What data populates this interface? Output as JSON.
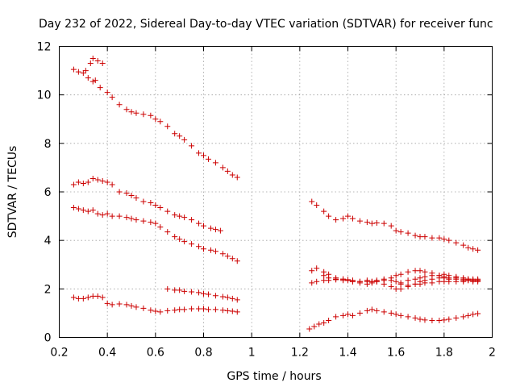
{
  "chart_data": {
    "type": "scatter",
    "title": "Day 232 of 2022, Sidereal Day-to-day VTEC variation (SDTVAR) for receiver func",
    "xlabel": "GPS time / hours",
    "ylabel": "SDTVAR / TECUs",
    "xlim": [
      0.2,
      2.0
    ],
    "ylim": [
      0,
      12
    ],
    "xticks": [
      0.2,
      0.4,
      0.6,
      0.8,
      1.0,
      1.2,
      1.4,
      1.6,
      1.8,
      2.0
    ],
    "xtick_labels": [
      "0.2",
      "0.4",
      "0.6",
      "0.8",
      "1",
      "1.2",
      "1.4",
      "1.6",
      "1.8",
      "2"
    ],
    "yticks": [
      0,
      2,
      4,
      6,
      8,
      10,
      12
    ],
    "ytick_labels": [
      "0",
      "2",
      "4",
      "6",
      "8",
      "10",
      "12"
    ],
    "grid": true,
    "marker": "+",
    "marker_color": "#cc0000",
    "series": [
      {
        "name": "s1",
        "points": [
          [
            0.26,
            11.05
          ],
          [
            0.28,
            10.95
          ],
          [
            0.3,
            10.9
          ],
          [
            0.32,
            10.7
          ],
          [
            0.34,
            10.55
          ],
          [
            0.35,
            10.6
          ],
          [
            0.37,
            10.3
          ],
          [
            0.4,
            10.1
          ],
          [
            0.42,
            9.9
          ],
          [
            0.45,
            9.6
          ],
          [
            0.48,
            9.4
          ],
          [
            0.5,
            9.3
          ],
          [
            0.52,
            9.25
          ],
          [
            0.55,
            9.2
          ],
          [
            0.58,
            9.15
          ],
          [
            0.6,
            9.0
          ],
          [
            0.62,
            8.9
          ],
          [
            0.65,
            8.7
          ],
          [
            0.68,
            8.4
          ],
          [
            0.7,
            8.3
          ],
          [
            0.72,
            8.15
          ],
          [
            0.75,
            7.9
          ],
          [
            0.78,
            7.6
          ],
          [
            0.8,
            7.5
          ],
          [
            0.82,
            7.35
          ],
          [
            0.85,
            7.2
          ],
          [
            0.88,
            7.0
          ],
          [
            0.9,
            6.85
          ],
          [
            0.92,
            6.7
          ],
          [
            0.94,
            6.6
          ]
        ]
      },
      {
        "name": "s1b",
        "points": [
          [
            0.31,
            11.0
          ],
          [
            0.33,
            11.3
          ],
          [
            0.34,
            11.5
          ],
          [
            0.36,
            11.4
          ],
          [
            0.38,
            11.3
          ]
        ]
      },
      {
        "name": "s2",
        "points": [
          [
            0.26,
            6.3
          ],
          [
            0.28,
            6.4
          ],
          [
            0.3,
            6.35
          ],
          [
            0.32,
            6.4
          ],
          [
            0.34,
            6.55
          ],
          [
            0.36,
            6.5
          ],
          [
            0.38,
            6.45
          ],
          [
            0.4,
            6.4
          ],
          [
            0.42,
            6.3
          ],
          [
            0.45,
            6.0
          ],
          [
            0.48,
            5.95
          ],
          [
            0.5,
            5.85
          ],
          [
            0.52,
            5.75
          ],
          [
            0.55,
            5.6
          ],
          [
            0.58,
            5.55
          ],
          [
            0.6,
            5.45
          ],
          [
            0.62,
            5.35
          ],
          [
            0.65,
            5.2
          ],
          [
            0.68,
            5.05
          ],
          [
            0.7,
            5.0
          ],
          [
            0.72,
            4.95
          ],
          [
            0.75,
            4.85
          ],
          [
            0.78,
            4.7
          ],
          [
            0.8,
            4.6
          ],
          [
            0.83,
            4.5
          ],
          [
            0.85,
            4.45
          ],
          [
            0.87,
            4.4
          ]
        ]
      },
      {
        "name": "s3",
        "points": [
          [
            0.26,
            5.35
          ],
          [
            0.28,
            5.3
          ],
          [
            0.3,
            5.25
          ],
          [
            0.32,
            5.2
          ],
          [
            0.34,
            5.25
          ],
          [
            0.36,
            5.1
          ],
          [
            0.38,
            5.05
          ],
          [
            0.4,
            5.1
          ],
          [
            0.42,
            5.0
          ],
          [
            0.45,
            5.0
          ],
          [
            0.48,
            4.95
          ],
          [
            0.5,
            4.9
          ],
          [
            0.52,
            4.85
          ],
          [
            0.55,
            4.8
          ],
          [
            0.58,
            4.75
          ],
          [
            0.6,
            4.7
          ],
          [
            0.62,
            4.55
          ],
          [
            0.65,
            4.35
          ],
          [
            0.68,
            4.15
          ],
          [
            0.7,
            4.05
          ],
          [
            0.72,
            3.95
          ],
          [
            0.75,
            3.85
          ],
          [
            0.78,
            3.75
          ],
          [
            0.8,
            3.65
          ],
          [
            0.83,
            3.6
          ],
          [
            0.85,
            3.55
          ],
          [
            0.88,
            3.45
          ],
          [
            0.9,
            3.35
          ],
          [
            0.92,
            3.25
          ],
          [
            0.94,
            3.15
          ]
        ]
      },
      {
        "name": "s4",
        "points": [
          [
            0.26,
            1.65
          ],
          [
            0.28,
            1.6
          ],
          [
            0.3,
            1.6
          ],
          [
            0.32,
            1.65
          ],
          [
            0.34,
            1.7
          ],
          [
            0.36,
            1.7
          ],
          [
            0.38,
            1.65
          ],
          [
            0.4,
            1.4
          ],
          [
            0.42,
            1.35
          ],
          [
            0.45,
            1.38
          ],
          [
            0.48,
            1.35
          ],
          [
            0.5,
            1.3
          ],
          [
            0.52,
            1.25
          ],
          [
            0.55,
            1.2
          ],
          [
            0.58,
            1.12
          ],
          [
            0.6,
            1.08
          ],
          [
            0.62,
            1.05
          ],
          [
            0.65,
            1.1
          ],
          [
            0.68,
            1.12
          ],
          [
            0.7,
            1.15
          ],
          [
            0.72,
            1.15
          ],
          [
            0.75,
            1.18
          ],
          [
            0.78,
            1.18
          ],
          [
            0.8,
            1.18
          ],
          [
            0.82,
            1.15
          ],
          [
            0.85,
            1.15
          ],
          [
            0.88,
            1.12
          ],
          [
            0.9,
            1.1
          ],
          [
            0.92,
            1.08
          ],
          [
            0.94,
            1.05
          ]
        ]
      },
      {
        "name": "s5",
        "points": [
          [
            0.65,
            2.0
          ],
          [
            0.68,
            1.95
          ],
          [
            0.7,
            1.95
          ],
          [
            0.72,
            1.9
          ],
          [
            0.75,
            1.88
          ],
          [
            0.78,
            1.85
          ],
          [
            0.8,
            1.8
          ],
          [
            0.82,
            1.78
          ],
          [
            0.85,
            1.72
          ],
          [
            0.88,
            1.68
          ],
          [
            0.9,
            1.65
          ],
          [
            0.92,
            1.6
          ],
          [
            0.94,
            1.55
          ]
        ]
      },
      {
        "name": "s6",
        "points": [
          [
            1.25,
            5.6
          ],
          [
            1.27,
            5.45
          ],
          [
            1.3,
            5.2
          ],
          [
            1.32,
            5.0
          ],
          [
            1.35,
            4.85
          ],
          [
            1.38,
            4.9
          ],
          [
            1.4,
            5.0
          ],
          [
            1.42,
            4.9
          ],
          [
            1.45,
            4.8
          ],
          [
            1.48,
            4.75
          ],
          [
            1.5,
            4.7
          ],
          [
            1.52,
            4.72
          ],
          [
            1.55,
            4.7
          ],
          [
            1.58,
            4.6
          ],
          [
            1.6,
            4.4
          ],
          [
            1.62,
            4.35
          ],
          [
            1.65,
            4.3
          ],
          [
            1.68,
            4.2
          ],
          [
            1.7,
            4.15
          ],
          [
            1.72,
            4.15
          ],
          [
            1.75,
            4.1
          ],
          [
            1.78,
            4.1
          ],
          [
            1.8,
            4.05
          ],
          [
            1.82,
            4.0
          ],
          [
            1.85,
            3.9
          ],
          [
            1.88,
            3.8
          ],
          [
            1.9,
            3.7
          ],
          [
            1.92,
            3.65
          ],
          [
            1.94,
            3.6
          ]
        ]
      },
      {
        "name": "s7",
        "points": [
          [
            1.25,
            2.75
          ],
          [
            1.27,
            2.85
          ],
          [
            1.3,
            2.55
          ],
          [
            1.32,
            2.45
          ],
          [
            1.35,
            2.4
          ],
          [
            1.38,
            2.35
          ],
          [
            1.4,
            2.35
          ],
          [
            1.42,
            2.3
          ],
          [
            1.45,
            2.3
          ],
          [
            1.48,
            2.35
          ],
          [
            1.5,
            2.3
          ],
          [
            1.52,
            2.3
          ],
          [
            1.55,
            2.35
          ],
          [
            1.58,
            2.45
          ],
          [
            1.6,
            2.55
          ],
          [
            1.62,
            2.6
          ],
          [
            1.65,
            2.7
          ],
          [
            1.68,
            2.75
          ],
          [
            1.7,
            2.75
          ],
          [
            1.72,
            2.7
          ],
          [
            1.75,
            2.65
          ],
          [
            1.78,
            2.55
          ],
          [
            1.8,
            2.5
          ],
          [
            1.82,
            2.45
          ],
          [
            1.85,
            2.45
          ],
          [
            1.88,
            2.4
          ],
          [
            1.9,
            2.4
          ],
          [
            1.92,
            2.35
          ],
          [
            1.94,
            2.35
          ]
        ]
      },
      {
        "name": "s8",
        "points": [
          [
            1.25,
            2.25
          ],
          [
            1.27,
            2.3
          ],
          [
            1.3,
            2.35
          ],
          [
            1.32,
            2.35
          ],
          [
            1.35,
            2.38
          ],
          [
            1.38,
            2.4
          ],
          [
            1.4,
            2.38
          ],
          [
            1.42,
            2.35
          ],
          [
            1.45,
            2.3
          ],
          [
            1.48,
            2.2
          ],
          [
            1.5,
            2.25
          ],
          [
            1.52,
            2.3
          ],
          [
            1.55,
            2.2
          ],
          [
            1.58,
            2.1
          ],
          [
            1.6,
            2.0
          ],
          [
            1.62,
            2.0
          ],
          [
            1.65,
            2.1
          ],
          [
            1.68,
            2.2
          ],
          [
            1.7,
            2.3
          ],
          [
            1.72,
            2.35
          ],
          [
            1.75,
            2.4
          ],
          [
            1.78,
            2.45
          ],
          [
            1.8,
            2.45
          ],
          [
            1.82,
            2.4
          ],
          [
            1.85,
            2.4
          ],
          [
            1.88,
            2.35
          ],
          [
            1.9,
            2.35
          ],
          [
            1.92,
            2.3
          ],
          [
            1.94,
            2.3
          ]
        ]
      },
      {
        "name": "s9",
        "points": [
          [
            1.62,
            2.25
          ],
          [
            1.65,
            2.35
          ],
          [
            1.68,
            2.4
          ],
          [
            1.7,
            2.45
          ],
          [
            1.72,
            2.5
          ],
          [
            1.75,
            2.55
          ],
          [
            1.78,
            2.55
          ],
          [
            1.8,
            2.6
          ],
          [
            1.82,
            2.55
          ],
          [
            1.85,
            2.5
          ],
          [
            1.88,
            2.45
          ],
          [
            1.9,
            2.4
          ],
          [
            1.92,
            2.4
          ],
          [
            1.94,
            2.35
          ]
        ]
      },
      {
        "name": "s10",
        "points": [
          [
            1.3,
            2.7
          ],
          [
            1.32,
            2.6
          ],
          [
            1.35,
            2.45
          ],
          [
            1.38,
            2.4
          ],
          [
            1.4,
            2.35
          ],
          [
            1.42,
            2.3
          ],
          [
            1.45,
            2.25
          ],
          [
            1.48,
            2.3
          ],
          [
            1.5,
            2.3
          ],
          [
            1.52,
            2.35
          ],
          [
            1.55,
            2.4
          ],
          [
            1.58,
            2.35
          ],
          [
            1.6,
            2.3
          ],
          [
            1.62,
            2.2
          ],
          [
            1.65,
            2.15
          ],
          [
            1.68,
            2.2
          ],
          [
            1.7,
            2.2
          ],
          [
            1.72,
            2.25
          ],
          [
            1.75,
            2.25
          ],
          [
            1.78,
            2.3
          ],
          [
            1.8,
            2.3
          ],
          [
            1.82,
            2.3
          ],
          [
            1.85,
            2.3
          ],
          [
            1.88,
            2.3
          ],
          [
            1.9,
            2.35
          ],
          [
            1.92,
            2.35
          ],
          [
            1.94,
            2.4
          ]
        ]
      },
      {
        "name": "s11",
        "points": [
          [
            1.24,
            0.35
          ],
          [
            1.26,
            0.45
          ],
          [
            1.28,
            0.55
          ],
          [
            1.3,
            0.6
          ],
          [
            1.32,
            0.7
          ],
          [
            1.35,
            0.85
          ],
          [
            1.38,
            0.9
          ],
          [
            1.4,
            0.95
          ],
          [
            1.42,
            0.9
          ],
          [
            1.45,
            1.0
          ],
          [
            1.48,
            1.1
          ],
          [
            1.5,
            1.15
          ],
          [
            1.52,
            1.1
          ],
          [
            1.55,
            1.05
          ],
          [
            1.58,
            1.0
          ],
          [
            1.6,
            0.95
          ],
          [
            1.62,
            0.9
          ],
          [
            1.65,
            0.85
          ],
          [
            1.68,
            0.8
          ],
          [
            1.7,
            0.75
          ],
          [
            1.72,
            0.72
          ],
          [
            1.75,
            0.7
          ],
          [
            1.78,
            0.7
          ],
          [
            1.8,
            0.72
          ],
          [
            1.82,
            0.75
          ],
          [
            1.85,
            0.8
          ],
          [
            1.88,
            0.85
          ],
          [
            1.9,
            0.9
          ],
          [
            1.92,
            0.95
          ],
          [
            1.94,
            0.98
          ]
        ]
      }
    ]
  }
}
